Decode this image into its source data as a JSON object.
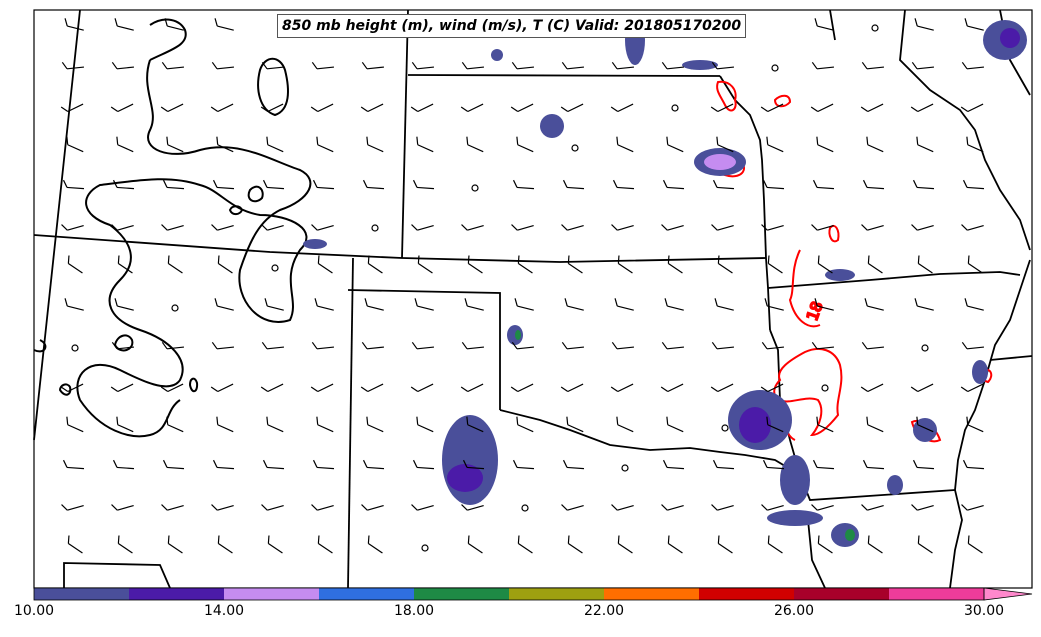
{
  "title": "850 mb height (m), wind (m/s), T (C) Valid: 201805170200",
  "contour_label": "18",
  "colorbar": {
    "tick_labels": [
      "10.00",
      "14.00",
      "18.00",
      "22.00",
      "26.00",
      "30.00"
    ],
    "colors": [
      "#4a4f9a",
      "#4b1ba8",
      "#c58cf0",
      "#2f6fe0",
      "#1e8a45",
      "#9ea010",
      "#ff6e00",
      "#d10000",
      "#a8002a",
      "#ee3c9a",
      "#ff88cc"
    ]
  },
  "colors": {
    "border_lines": "#000000",
    "height_contour": "#000000",
    "temperature_contour": "#ff0000",
    "wind_barbs": "#000000"
  }
}
